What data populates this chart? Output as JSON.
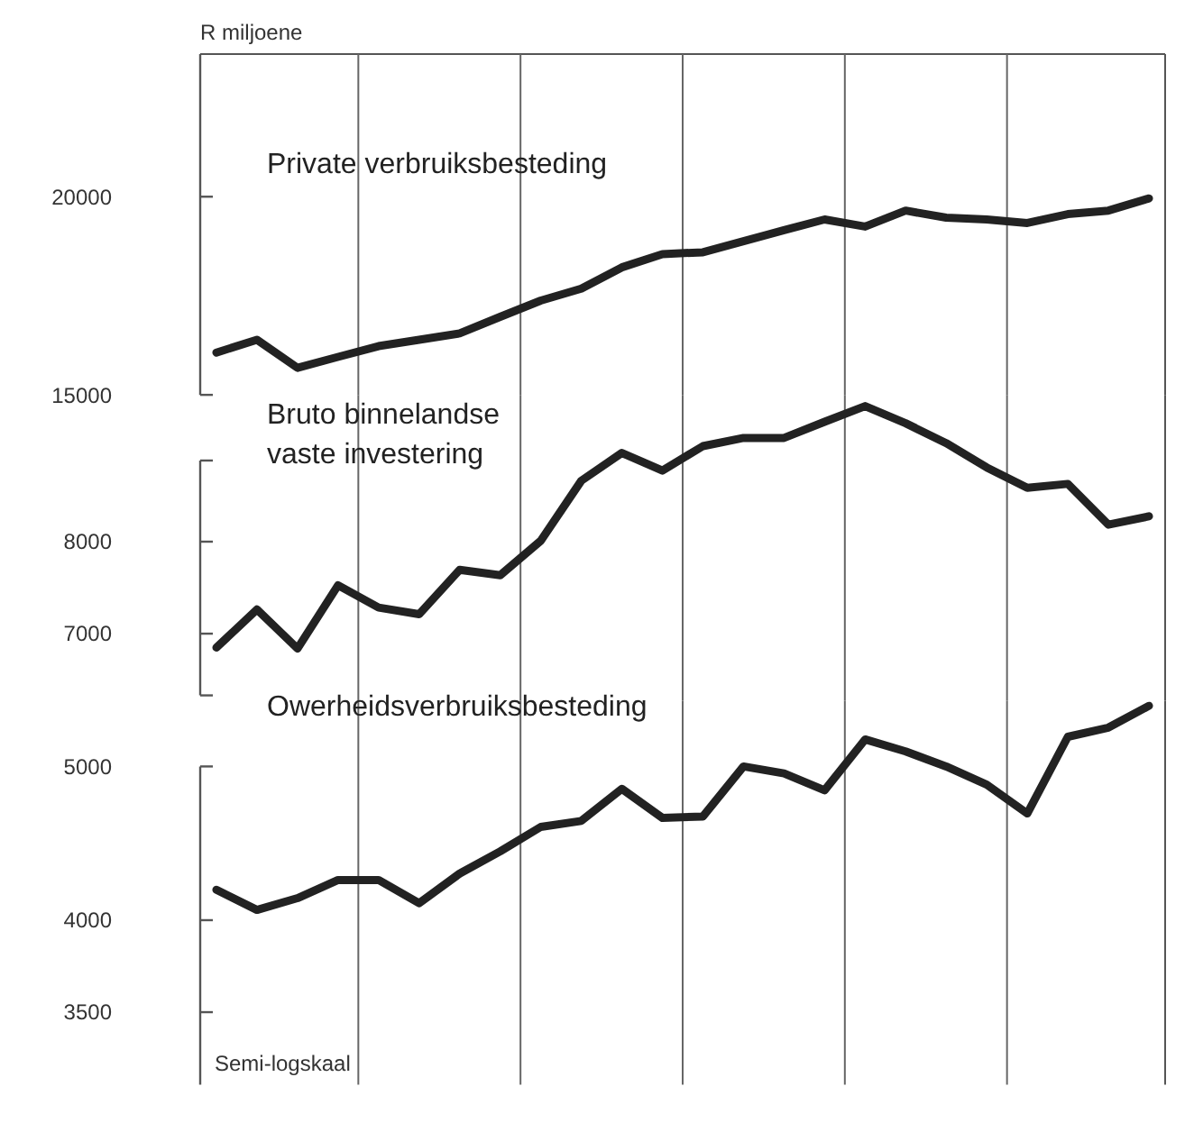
{
  "chart_data": [
    {
      "type": "line",
      "ylabel": "R miljoene",
      "categories": [
        null,
        null,
        null,
        null,
        null,
        null,
        null,
        null,
        null,
        null,
        null,
        null,
        null,
        null,
        null,
        null,
        null,
        null,
        null,
        null,
        null,
        null,
        null,
        null
      ],
      "ylim": [
        15000,
        24600
      ],
      "yticks": [
        15000,
        20000
      ],
      "log": true,
      "grid": "x",
      "tick_labels": "y",
      "series": [
        {
          "name": "Private verbruiksbesteding",
          "color": "#222222",
          "values": [
            15950,
            16250,
            15600,
            15850,
            16100,
            16250,
            16400,
            16800,
            17200,
            17500,
            18050,
            18400,
            18450,
            18750,
            19050,
            19350,
            19150,
            19600,
            19400,
            19350,
            19250,
            19500,
            19600,
            19950
          ]
        }
      ]
    },
    {
      "type": "line",
      "categories": [
        null,
        null,
        null,
        null,
        null,
        null,
        null,
        null,
        null,
        null,
        null,
        null,
        null,
        null,
        null,
        null,
        null,
        null,
        null,
        null,
        null,
        null,
        null,
        null
      ],
      "ylim": [
        6350,
        9900
      ],
      "yticks": [
        {
          "value": 6400,
          "label": null
        },
        7000,
        8000,
        {
          "value": 9000,
          "label": null
        }
      ],
      "log": true,
      "grid": "x",
      "tick_labels": "y",
      "series": [
        {
          "name": "Bruto binnelandse vaste investering",
          "color": "#222222",
          "values": [
            6860,
            7250,
            6850,
            7510,
            7270,
            7200,
            7680,
            7620,
            8010,
            8740,
            9100,
            8870,
            9190,
            9300,
            9300,
            9520,
            9740,
            9500,
            9230,
            8910,
            8650,
            8700,
            8200,
            8300
          ]
        }
      ]
    },
    {
      "type": "line",
      "categories": [
        null,
        null,
        null,
        null,
        null,
        null,
        null,
        null,
        null,
        null,
        null,
        null,
        null,
        null,
        null,
        null,
        null,
        null,
        null,
        null,
        null,
        null,
        null,
        null
      ],
      "ylim": [
        3150,
        5500
      ],
      "yticks": [
        3500,
        4000,
        5000
      ],
      "log": true,
      "grid": "x",
      "tick_labels": "y",
      "annotations": [
        "Semi-logskaal"
      ],
      "series": [
        {
          "name": "Owerheidsverbruiksbesteding",
          "color": "#222222",
          "values": [
            4180,
            4060,
            4130,
            4240,
            4240,
            4100,
            4280,
            4420,
            4580,
            4620,
            4840,
            4640,
            4650,
            5000,
            4950,
            4830,
            5200,
            5110,
            5000,
            4870,
            4670,
            5220,
            5290,
            5460
          ]
        }
      ]
    }
  ]
}
